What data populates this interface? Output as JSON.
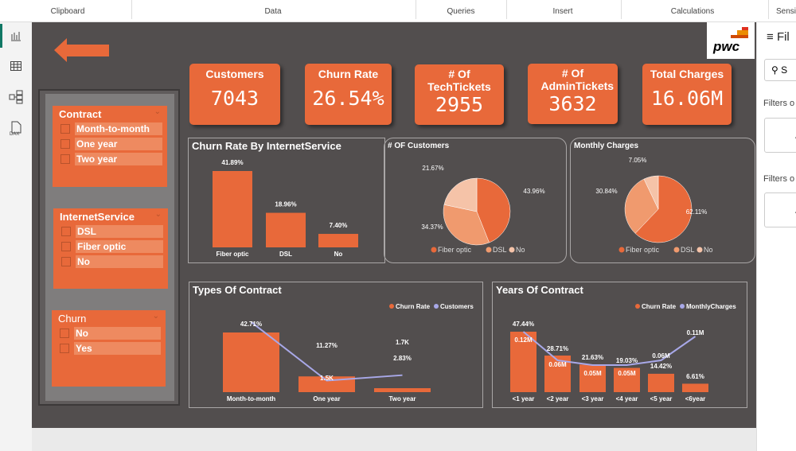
{
  "ribbon": {
    "groups": [
      "Clipboard",
      "Data",
      "Queries",
      "Insert",
      "Calculations",
      "Sensit"
    ]
  },
  "rail": {
    "icons": [
      "report-view-icon",
      "table-view-icon",
      "model-view-icon",
      "dax-query-icon"
    ],
    "dax_label": "DAX"
  },
  "logo": {
    "text": "pwc"
  },
  "kpis": [
    {
      "title": "Customers",
      "value": "7043"
    },
    {
      "title": "Churn Rate",
      "value": "26.54%"
    },
    {
      "title": "# Of TechTickets",
      "value": "2955"
    },
    {
      "title": "# Of AdminTickets",
      "value": "3632"
    },
    {
      "title": "Total Charges",
      "value": "16.06M"
    }
  ],
  "slicers": [
    {
      "title": "Contract",
      "options": [
        "Month-to-month",
        "One year",
        "Two year"
      ]
    },
    {
      "title": "InternetService",
      "options": [
        "DSL",
        "Fiber optic",
        "No"
      ]
    },
    {
      "title": "Churn",
      "options": [
        "No",
        "Yes"
      ]
    }
  ],
  "filters_pane": {
    "title": "Fil",
    "search": "S",
    "section1": "Filters o",
    "add1": "A",
    "section2": "Filters o",
    "add2": "A"
  },
  "colors": {
    "accent": "#e8693a",
    "mid": "#f09a6e",
    "light": "#f5c3a8",
    "line": "#a8a8e8",
    "canvas": "#524e4e"
  },
  "chart_data": [
    {
      "type": "bar",
      "title": "Churn Rate By InternetService",
      "categories": [
        "Fiber optic",
        "DSL",
        "No"
      ],
      "values": [
        41.89,
        18.96,
        7.4
      ],
      "labels": [
        "41.89%",
        "18.96%",
        "7.40%"
      ]
    },
    {
      "type": "pie",
      "title": "# OF Customers",
      "categories": [
        "Fiber optic",
        "DSL",
        "No"
      ],
      "values": [
        43.96,
        34.37,
        21.67
      ],
      "labels": [
        "43.96%",
        "34.37%",
        "21.67%"
      ],
      "legend": "bottom"
    },
    {
      "type": "pie",
      "title": "Monthly Charges",
      "categories": [
        "Fiber optic",
        "DSL",
        "No"
      ],
      "values": [
        62.11,
        30.84,
        7.05
      ],
      "labels": [
        "62.11%",
        "30.84%",
        "7.05%"
      ],
      "legend": "bottom"
    },
    {
      "type": "bar+line",
      "title": "Types Of Contract",
      "categories": [
        "Month-to-month",
        "One year",
        "Two year"
      ],
      "series": [
        {
          "name": "Churn Rate",
          "values": [
            42.71,
            11.27,
            2.83
          ],
          "labels": [
            "42.71%",
            "11.27%",
            "2.83%"
          ]
        },
        {
          "name": "Customers",
          "values": [
            3875,
            1473,
            1695
          ],
          "labels": [
            "",
            "1.5K",
            "1.7K"
          ]
        }
      ],
      "legend": "top-right"
    },
    {
      "type": "bar+line",
      "title": "Years Of Contract",
      "categories": [
        "<1 year",
        "<2 year",
        "<3 year",
        "<4 year",
        "<5 year",
        "<6year"
      ],
      "series": [
        {
          "name": "Churn Rate",
          "values": [
            47.44,
            28.71,
            21.63,
            19.03,
            14.42,
            6.61
          ],
          "labels": [
            "47.44%",
            "28.71%",
            "21.63%",
            "19.03%",
            "14.42%",
            "6.61%"
          ]
        },
        {
          "name": "MonthlyCharges",
          "values": [
            0.12,
            0.06,
            0.05,
            0.05,
            0.06,
            0.11
          ],
          "labels": [
            "0.12M",
            "0.06M",
            "0.05M",
            "0.05M",
            "0.06M",
            "0.11M"
          ]
        }
      ],
      "legend": "top-right"
    }
  ]
}
